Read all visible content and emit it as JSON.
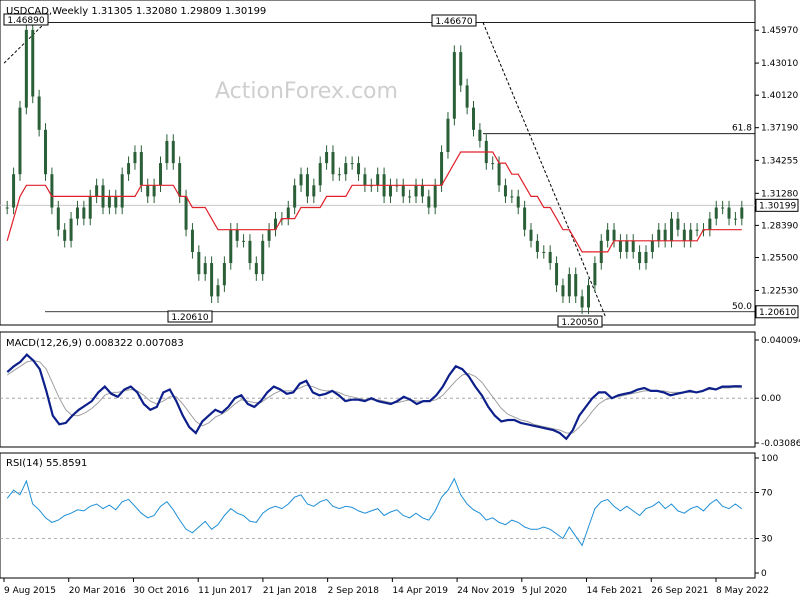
{
  "chart_data": [
    {
      "type": "candlestick",
      "panel": "price",
      "header": {
        "symbol": "USDCAD,Weekly",
        "open": "1.31305",
        "high": "1.32080",
        "low": "1.29809",
        "close": "1.30199"
      },
      "watermark": "ActionForex.com",
      "ylim": [
        1.2005,
        1.4689
      ],
      "y_ticks": [
        {
          "value": 1.4597,
          "label": "1.45970"
        },
        {
          "value": 1.4301,
          "label": "1.43010"
        },
        {
          "value": 1.4012,
          "label": "1.40120"
        },
        {
          "value": 1.3719,
          "label": "1.37190"
        },
        {
          "value": 1.3425,
          "label": "1.34255"
        },
        {
          "value": 1.3128,
          "label": "1.31280"
        },
        {
          "value": 1.2839,
          "label": "1.28390"
        },
        {
          "value": 1.255,
          "label": "1.25500"
        },
        {
          "value": 1.2253,
          "label": "1.22530"
        }
      ],
      "current_price": {
        "value": 1.30199,
        "label": "1.30199"
      },
      "level_marker": {
        "value": 1.2061,
        "label": "1.20610"
      },
      "annotations": [
        {
          "label": "1.46890",
          "value": 1.4689
        },
        {
          "label": "1.46670",
          "value": 1.4667
        },
        {
          "label": "1.20610",
          "value": 1.2061
        },
        {
          "label": "1.20050",
          "value": 1.2005
        }
      ],
      "fib_levels": [
        {
          "label": "61.8",
          "value": 1.3665
        },
        {
          "label": "50.0",
          "value": 1.2061
        }
      ],
      "series": [
        {
          "name": "price",
          "close": [
            1.3,
            1.33,
            1.39,
            1.46,
            1.4,
            1.37,
            1.33,
            1.3,
            1.28,
            1.27,
            1.29,
            1.3,
            1.29,
            1.31,
            1.32,
            1.3,
            1.31,
            1.3,
            1.33,
            1.34,
            1.35,
            1.32,
            1.31,
            1.32,
            1.34,
            1.36,
            1.34,
            1.31,
            1.28,
            1.26,
            1.24,
            1.25,
            1.22,
            1.23,
            1.25,
            1.28,
            1.27,
            1.27,
            1.25,
            1.24,
            1.27,
            1.28,
            1.29,
            1.29,
            1.3,
            1.32,
            1.33,
            1.31,
            1.32,
            1.34,
            1.35,
            1.33,
            1.33,
            1.34,
            1.34,
            1.33,
            1.32,
            1.32,
            1.33,
            1.31,
            1.32,
            1.32,
            1.31,
            1.31,
            1.32,
            1.31,
            1.3,
            1.32,
            1.35,
            1.38,
            1.44,
            1.41,
            1.39,
            1.37,
            1.36,
            1.34,
            1.34,
            1.32,
            1.31,
            1.31,
            1.3,
            1.28,
            1.27,
            1.26,
            1.26,
            1.25,
            1.23,
            1.22,
            1.24,
            1.22,
            1.21,
            1.23,
            1.25,
            1.27,
            1.28,
            1.27,
            1.26,
            1.27,
            1.26,
            1.25,
            1.26,
            1.27,
            1.28,
            1.27,
            1.29,
            1.28,
            1.27,
            1.28,
            1.28,
            1.28,
            1.29,
            1.3,
            1.3,
            1.29,
            1.29,
            1.3
          ],
          "ma": [
            1.27,
            1.29,
            1.31,
            1.32,
            1.32,
            1.32,
            1.32,
            1.31,
            1.31,
            1.31,
            1.31,
            1.31,
            1.31,
            1.31,
            1.31,
            1.31,
            1.31,
            1.31,
            1.31,
            1.31,
            1.31,
            1.32,
            1.32,
            1.32,
            1.32,
            1.32,
            1.32,
            1.31,
            1.31,
            1.3,
            1.3,
            1.3,
            1.29,
            1.28,
            1.28,
            1.28,
            1.28,
            1.28,
            1.28,
            1.28,
            1.28,
            1.28,
            1.28,
            1.29,
            1.29,
            1.29,
            1.3,
            1.3,
            1.3,
            1.3,
            1.31,
            1.31,
            1.31,
            1.31,
            1.32,
            1.32,
            1.32,
            1.32,
            1.32,
            1.32,
            1.32,
            1.32,
            1.32,
            1.32,
            1.32,
            1.32,
            1.32,
            1.32,
            1.32,
            1.33,
            1.34,
            1.35,
            1.35,
            1.35,
            1.35,
            1.35,
            1.35,
            1.34,
            1.34,
            1.33,
            1.33,
            1.32,
            1.31,
            1.31,
            1.3,
            1.3,
            1.29,
            1.28,
            1.28,
            1.27,
            1.26,
            1.26,
            1.26,
            1.26,
            1.26,
            1.27,
            1.27,
            1.27,
            1.27,
            1.27,
            1.27,
            1.27,
            1.27,
            1.27,
            1.27,
            1.27,
            1.27,
            1.27,
            1.27,
            1.28,
            1.28,
            1.28,
            1.28,
            1.28,
            1.28,
            1.28
          ]
        }
      ]
    },
    {
      "type": "line",
      "panel": "macd",
      "header": "MACD(12,26,9) 0.008322 0.007083",
      "ylim": [
        -0.03086,
        0.040094
      ],
      "y_ticks": [
        {
          "value": 0.040094,
          "label": "0.040094"
        },
        {
          "value": 0.0,
          "label": "0.00"
        },
        {
          "value": -0.03086,
          "label": "-0.03086"
        }
      ],
      "series": [
        {
          "name": "macd",
          "values": [
            0.018,
            0.022,
            0.025,
            0.03,
            0.026,
            0.02,
            0.005,
            -0.012,
            -0.018,
            -0.017,
            -0.012,
            -0.008,
            -0.005,
            -0.002,
            0.004,
            0.008,
            0.003,
            0.001,
            0.006,
            0.008,
            0.004,
            -0.004,
            -0.008,
            -0.006,
            0.004,
            0.006,
            -0.002,
            -0.012,
            -0.02,
            -0.024,
            -0.016,
            -0.012,
            -0.008,
            -0.01,
            -0.006,
            0.0,
            0.002,
            -0.004,
            -0.006,
            -0.002,
            0.004,
            0.008,
            0.006,
            0.003,
            0.004,
            0.01,
            0.012,
            0.004,
            0.002,
            0.003,
            0.005,
            0.002,
            -0.002,
            -0.001,
            -0.001,
            -0.002,
            0.0,
            -0.002,
            -0.003,
            -0.004,
            -0.002,
            0.001,
            -0.001,
            -0.004,
            -0.002,
            -0.002,
            0.002,
            0.008,
            0.016,
            0.022,
            0.02,
            0.015,
            0.008,
            0.002,
            -0.006,
            -0.012,
            -0.016,
            -0.015,
            -0.015,
            -0.017,
            -0.018,
            -0.019,
            -0.02,
            -0.021,
            -0.022,
            -0.024,
            -0.028,
            -0.022,
            -0.012,
            -0.006,
            0.0,
            0.004,
            0.004,
            0.0,
            0.002,
            0.003,
            0.004,
            0.006,
            0.007,
            0.005,
            0.005,
            0.004,
            0.002,
            0.003,
            0.004,
            0.005,
            0.004,
            0.005,
            0.007,
            0.006,
            0.008,
            0.008,
            0.0083,
            0.0082
          ]
        },
        {
          "name": "signal",
          "values": [
            0.016,
            0.019,
            0.022,
            0.025,
            0.026,
            0.025,
            0.02,
            0.01,
            0.0,
            -0.008,
            -0.012,
            -0.012,
            -0.01,
            -0.007,
            -0.003,
            0.002,
            0.004,
            0.004,
            0.005,
            0.006,
            0.005,
            0.002,
            -0.002,
            -0.004,
            -0.002,
            0.001,
            0.001,
            -0.004,
            -0.01,
            -0.016,
            -0.019,
            -0.017,
            -0.013,
            -0.011,
            -0.008,
            -0.004,
            -0.001,
            -0.002,
            -0.003,
            -0.003,
            0.0,
            0.003,
            0.005,
            0.005,
            0.005,
            0.007,
            0.009,
            0.008,
            0.006,
            0.005,
            0.005,
            0.004,
            0.002,
            0.001,
            0.0,
            -0.001,
            -0.001,
            -0.001,
            -0.002,
            -0.003,
            -0.003,
            -0.002,
            -0.001,
            -0.002,
            -0.002,
            -0.002,
            -0.001,
            0.002,
            0.007,
            0.012,
            0.016,
            0.017,
            0.015,
            0.011,
            0.005,
            -0.001,
            -0.007,
            -0.011,
            -0.013,
            -0.015,
            -0.016,
            -0.018,
            -0.019,
            -0.02,
            -0.021,
            -0.022,
            -0.024,
            -0.024,
            -0.02,
            -0.015,
            -0.009,
            -0.004,
            -0.001,
            0.0,
            0.001,
            0.002,
            0.003,
            0.004,
            0.005,
            0.005,
            0.005,
            0.005,
            0.004,
            0.004,
            0.004,
            0.004,
            0.004,
            0.005,
            0.006,
            0.006,
            0.007,
            0.007,
            0.0075,
            0.0071
          ]
        }
      ]
    },
    {
      "type": "line",
      "panel": "rsi",
      "header": "RSI(14) 55.8591",
      "ylim": [
        0,
        100
      ],
      "y_ticks": [
        {
          "value": 100,
          "label": "100"
        },
        {
          "value": 70,
          "label": "70"
        },
        {
          "value": 30,
          "label": "30"
        },
        {
          "value": 0,
          "label": "0"
        }
      ],
      "series": [
        {
          "name": "rsi",
          "values": [
            65,
            72,
            68,
            80,
            60,
            55,
            48,
            44,
            46,
            50,
            52,
            55,
            54,
            58,
            60,
            56,
            59,
            55,
            62,
            64,
            58,
            52,
            48,
            50,
            58,
            62,
            55,
            46,
            38,
            35,
            40,
            45,
            38,
            42,
            50,
            56,
            52,
            50,
            45,
            44,
            52,
            56,
            58,
            56,
            60,
            66,
            68,
            60,
            58,
            62,
            64,
            58,
            56,
            58,
            57,
            54,
            52,
            54,
            56,
            50,
            53,
            55,
            50,
            48,
            52,
            48,
            46,
            54,
            66,
            72,
            82,
            68,
            60,
            55,
            52,
            46,
            48,
            44,
            42,
            46,
            44,
            40,
            38,
            38,
            40,
            38,
            34,
            30,
            40,
            32,
            24,
            40,
            56,
            62,
            64,
            58,
            54,
            58,
            54,
            50,
            56,
            58,
            62,
            56,
            60,
            54,
            52,
            56,
            58,
            54,
            60,
            64,
            58,
            56,
            60,
            55.86
          ]
        }
      ]
    }
  ],
  "x_axis": {
    "labels": [
      "9 Aug 2015",
      "20 Mar 2016",
      "30 Oct 2016",
      "11 Jun 2017",
      "21 Jan 2018",
      "2 Sep 2018",
      "14 Apr 2019",
      "24 Nov 2019",
      "5 Jul 2020",
      "14 Feb 2021",
      "26 Sep 2021",
      "8 May 2022"
    ]
  },
  "colors": {
    "background": "#ffffff",
    "candle": "#2a5f38",
    "moving_average": "#e0202a",
    "macd": "#0d1f8a",
    "signal": "#a0a0a0",
    "axis_text": "#000000",
    "grid_line": "#c8c8c8",
    "label_bg": "#ffffff",
    "label_border": "#000000"
  }
}
